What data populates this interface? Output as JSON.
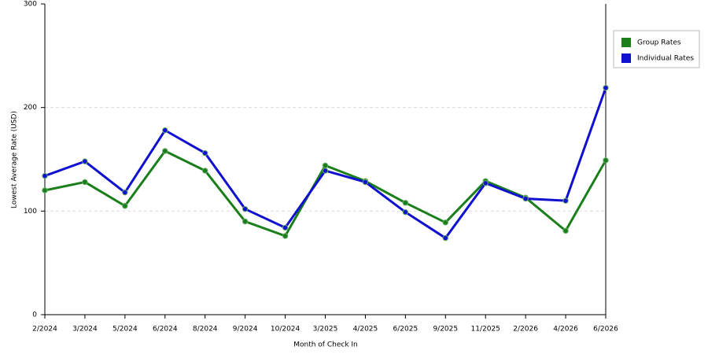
{
  "chart_data": {
    "type": "line",
    "x_label": "Month of Check In",
    "y_label": "Lowest Average Rate (USD)",
    "categories": [
      "2/2024",
      "3/2024",
      "5/2024",
      "6/2024",
      "8/2024",
      "9/2024",
      "10/2024",
      "3/2025",
      "4/2025",
      "6/2025",
      "9/2025",
      "11/2025",
      "2/2026",
      "4/2026",
      "6/2026"
    ],
    "series": [
      {
        "name": "Group Rates",
        "color": "#1a7f1a",
        "values": [
          120,
          128,
          105,
          158,
          139,
          90,
          76,
          144,
          129,
          108,
          89,
          129,
          113,
          81,
          149
        ]
      },
      {
        "name": "Individual Rates",
        "color": "#1010d0",
        "values": [
          134,
          148,
          118,
          178,
          156,
          102,
          84,
          139,
          128,
          99,
          74,
          127,
          112,
          110,
          219
        ]
      }
    ],
    "ylim": [
      0,
      300
    ],
    "yticks": [
      0,
      100,
      200,
      300
    ],
    "grid": true,
    "legend": "right"
  }
}
